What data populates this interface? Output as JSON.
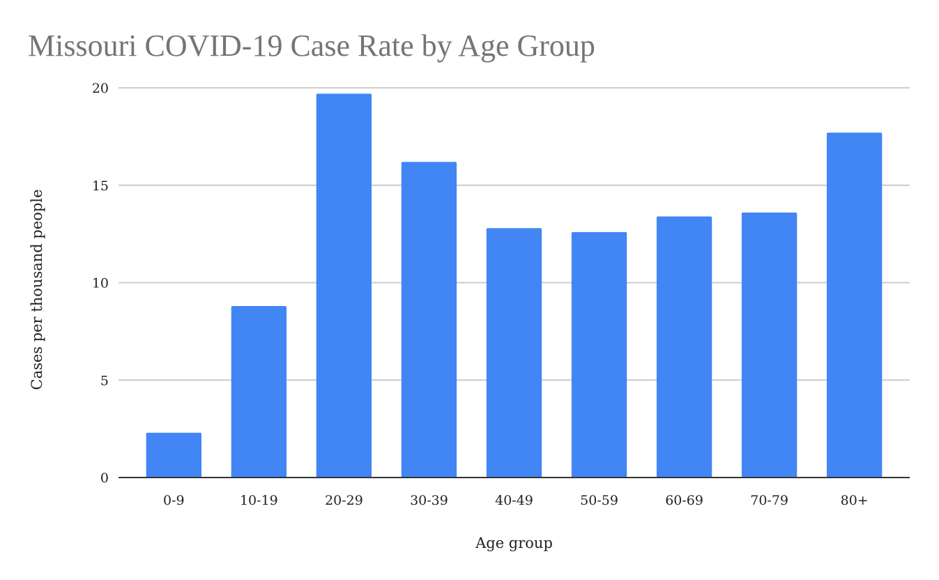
{
  "chart_data": {
    "type": "bar",
    "title": "Missouri COVID-19 Case Rate by Age Group",
    "xlabel": "Age group",
    "ylabel": "Cases per thousand people",
    "categories": [
      "0-9",
      "10-19",
      "20-29",
      "30-39",
      "40-49",
      "50-59",
      "60-69",
      "70-79",
      "80+"
    ],
    "values": [
      2.3,
      8.8,
      19.7,
      16.2,
      12.8,
      12.6,
      13.4,
      13.6,
      17.7
    ],
    "ylim": [
      0,
      20
    ],
    "yticks": [
      "0",
      "5",
      "10",
      "15",
      "20"
    ],
    "grid": true,
    "legend": "none",
    "bar_color": "#4285f4",
    "title_color": "#757575"
  }
}
